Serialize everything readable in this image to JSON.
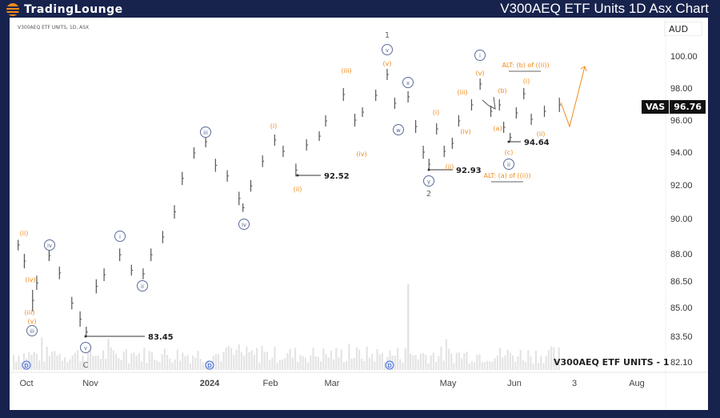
{
  "header": {
    "brand_left": "TradingLounge",
    "title": "V300AEQ ETF Units 1D Asx Chart"
  },
  "chart_meta": {
    "symbol_line": "V300AEQ ETF UNITS, 1D, ASX",
    "currency": "AUD",
    "indicator_label": "V300AEQ ETF UNITS - 1",
    "ticker": "VAS",
    "last_price": "96.76"
  },
  "colors": {
    "wave_orange": "#f08a1c",
    "wave_circle": "#5a6a9a",
    "bars": "#555555",
    "bg": "#17234d"
  },
  "chart_data": {
    "type": "ohlc-line",
    "title": "V300AEQ ETF Units 1D Asx Chart",
    "y_ticks": [
      "100.00",
      "98.00",
      "96.00",
      "94.00",
      "92.00",
      "90.00",
      "88.00",
      "86.50",
      "85.00",
      "83.50",
      "82.10"
    ],
    "x_ticks": [
      "Oct",
      "Nov",
      "2024",
      "Feb",
      "Mar",
      "May",
      "Jun",
      "3",
      "Aug"
    ],
    "points": [
      {
        "date": "2023-09-27",
        "high": 88.8,
        "low": 88.2
      },
      {
        "date": "2023-09-30",
        "high": 88.0,
        "low": 87.2
      },
      {
        "date": "2023-10-04",
        "high": 86.0,
        "low": 84.8
      },
      {
        "date": "2023-10-06",
        "high": 86.8,
        "low": 86.0
      },
      {
        "date": "2023-10-12",
        "high": 88.2,
        "low": 87.6
      },
      {
        "date": "2023-10-17",
        "high": 87.3,
        "low": 86.6
      },
      {
        "date": "2023-10-23",
        "high": 85.6,
        "low": 84.9
      },
      {
        "date": "2023-10-27",
        "high": 84.8,
        "low": 84.0
      },
      {
        "date": "2023-10-30",
        "high": 84.0,
        "low": 83.45
      },
      {
        "date": "2023-11-04",
        "high": 86.6,
        "low": 85.8
      },
      {
        "date": "2023-11-08",
        "high": 87.2,
        "low": 86.5
      },
      {
        "date": "2023-11-16",
        "high": 88.3,
        "low": 87.6
      },
      {
        "date": "2023-11-22",
        "high": 87.4,
        "low": 86.8
      },
      {
        "date": "2023-11-28",
        "high": 87.2,
        "low": 86.6
      },
      {
        "date": "2023-12-02",
        "high": 88.3,
        "low": 87.6
      },
      {
        "date": "2023-12-08",
        "high": 89.3,
        "low": 88.6
      },
      {
        "date": "2023-12-14",
        "high": 90.8,
        "low": 90.0
      },
      {
        "date": "2023-12-18",
        "high": 92.8,
        "low": 92.0
      },
      {
        "date": "2023-12-24",
        "high": 94.3,
        "low": 93.6
      },
      {
        "date": "2023-12-30",
        "high": 95.0,
        "low": 94.3
      },
      {
        "date": "2024-01-04",
        "high": 93.6,
        "low": 92.8
      },
      {
        "date": "2024-01-10",
        "high": 92.9,
        "low": 92.2
      },
      {
        "date": "2024-01-16",
        "high": 91.6,
        "low": 90.8
      },
      {
        "date": "2024-01-18",
        "high": 90.9,
        "low": 90.4
      },
      {
        "date": "2024-01-22",
        "high": 92.3,
        "low": 91.6
      },
      {
        "date": "2024-01-28",
        "high": 93.8,
        "low": 93.1
      },
      {
        "date": "2024-02-03",
        "high": 95.1,
        "low": 94.4
      },
      {
        "date": "2024-02-07",
        "high": 94.4,
        "low": 93.7
      },
      {
        "date": "2024-02-13",
        "high": 93.3,
        "low": 92.52
      },
      {
        "date": "2024-02-18",
        "high": 94.8,
        "low": 94.1
      },
      {
        "date": "2024-02-24",
        "high": 95.3,
        "low": 94.7
      },
      {
        "date": "2024-02-27",
        "high": 96.3,
        "low": 95.6
      },
      {
        "date": "2024-03-07",
        "high": 98.0,
        "low": 97.2
      },
      {
        "date": "2024-03-13",
        "high": 96.4,
        "low": 95.6
      },
      {
        "date": "2024-03-17",
        "high": 96.8,
        "low": 96.2
      },
      {
        "date": "2024-03-24",
        "high": 97.9,
        "low": 97.2
      },
      {
        "date": "2024-03-30",
        "high": 99.2,
        "low": 98.5
      },
      {
        "date": "2024-04-03",
        "high": 97.4,
        "low": 96.7
      },
      {
        "date": "2024-04-10",
        "high": 97.8,
        "low": 97.1
      },
      {
        "date": "2024-04-14",
        "high": 96.0,
        "low": 95.2
      },
      {
        "date": "2024-04-18",
        "high": 94.4,
        "low": 93.6
      },
      {
        "date": "2024-04-21",
        "high": 93.6,
        "low": 92.93
      },
      {
        "date": "2024-04-25",
        "high": 95.8,
        "low": 95.1
      },
      {
        "date": "2024-04-29",
        "high": 94.4,
        "low": 93.7
      },
      {
        "date": "2024-05-03",
        "high": 94.9,
        "low": 94.2
      },
      {
        "date": "2024-05-06",
        "high": 96.3,
        "low": 95.6
      },
      {
        "date": "2024-05-12",
        "high": 97.3,
        "low": 96.6
      },
      {
        "date": "2024-05-16",
        "high": 98.6,
        "low": 97.9
      },
      {
        "date": "2024-05-21",
        "high": 96.9,
        "low": 96.2
      },
      {
        "date": "2024-05-25",
        "high": 97.3,
        "low": 96.6
      },
      {
        "date": "2024-05-27",
        "high": 95.9,
        "low": 95.2
      },
      {
        "date": "2024-05-30",
        "high": 95.2,
        "low": 94.64
      },
      {
        "date": "2024-06-02",
        "high": 96.8,
        "low": 96.1
      },
      {
        "date": "2024-06-06",
        "high": 98.0,
        "low": 97.3
      },
      {
        "date": "2024-06-10",
        "high": 96.4,
        "low": 95.7
      },
      {
        "date": "2024-06-17",
        "high": 96.9,
        "low": 96.2
      },
      {
        "date": "2024-06-25",
        "high": 97.4,
        "low": 96.5
      }
    ],
    "price_annotations": [
      "83.45",
      "92.52",
      "92.93",
      "94.64"
    ],
    "wave_labels": [
      "(ii)",
      "(iv)",
      "(iii)",
      "(v)",
      "iii",
      "iv",
      "v",
      "C",
      "i",
      "ii",
      "iii",
      "iv",
      "(i)",
      "(ii)",
      "(iii)",
      "(iv)",
      "1",
      "v",
      "(v)",
      "x",
      "w",
      "(i)",
      "y",
      "2",
      "(ii)",
      "(iii)",
      "(iv)",
      "i",
      "(v)",
      "(b)",
      "(a)",
      "(c)",
      "ii",
      "(i)",
      "(ii)"
    ],
    "alt_labels": [
      "ALT: (b) of ((ii))",
      "ALT: (a) of ((ii))"
    ],
    "dividend_marker": "D"
  }
}
